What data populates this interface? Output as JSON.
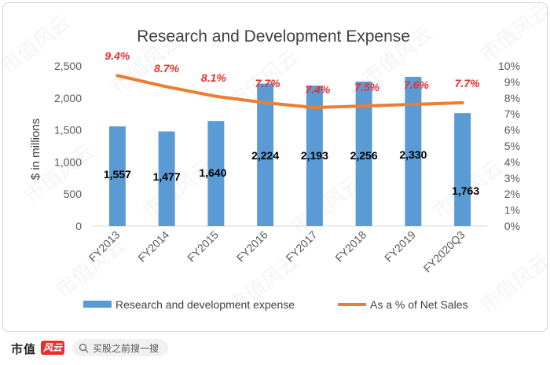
{
  "chart_data": {
    "type": "bar+line",
    "title": "Research and Development Expense",
    "ylabel": "$ in millions",
    "categories": [
      "FY2013",
      "FY2014",
      "FY2015",
      "FY2016",
      "FY2017",
      "FY2018",
      "FY2019",
      "FY2020Q3"
    ],
    "series": [
      {
        "name": "Research and development expense",
        "type": "bar",
        "axis": "left",
        "color": "#5b9bd5",
        "values": [
          1557,
          1477,
          1640,
          2224,
          2193,
          2256,
          2330,
          1763
        ],
        "labels": [
          "1,557",
          "1,477",
          "1,640",
          "2,224",
          "2,193",
          "2,256",
          "2,330",
          "1,763"
        ]
      },
      {
        "name": "As a % of Net Sales",
        "type": "line",
        "axis": "right",
        "color": "#ed7d31",
        "values": [
          9.4,
          8.7,
          8.1,
          7.7,
          7.4,
          7.5,
          7.6,
          7.7
        ],
        "labels": [
          "9.4%",
          "8.7%",
          "8.1%",
          "7.7%",
          "7.4%",
          "7.5%",
          "7.6%",
          "7.7%"
        ]
      }
    ],
    "y_left": {
      "min": 0,
      "max": 2500,
      "ticks": [
        "0",
        "500",
        "1,000",
        "1,500",
        "2,000",
        "2,500"
      ]
    },
    "y_right": {
      "min": 0,
      "max": 10,
      "ticks": [
        "0%",
        "1%",
        "2%",
        "3%",
        "4%",
        "5%",
        "6%",
        "7%",
        "8%",
        "9%",
        "10%"
      ]
    },
    "grid": false,
    "legend": "bottom",
    "label_color_pct": "#e8302a"
  },
  "footer": {
    "brand": "市值",
    "brand_mark": "风云",
    "search_text": "买股之前搜一搜"
  },
  "watermark": "市值风云"
}
